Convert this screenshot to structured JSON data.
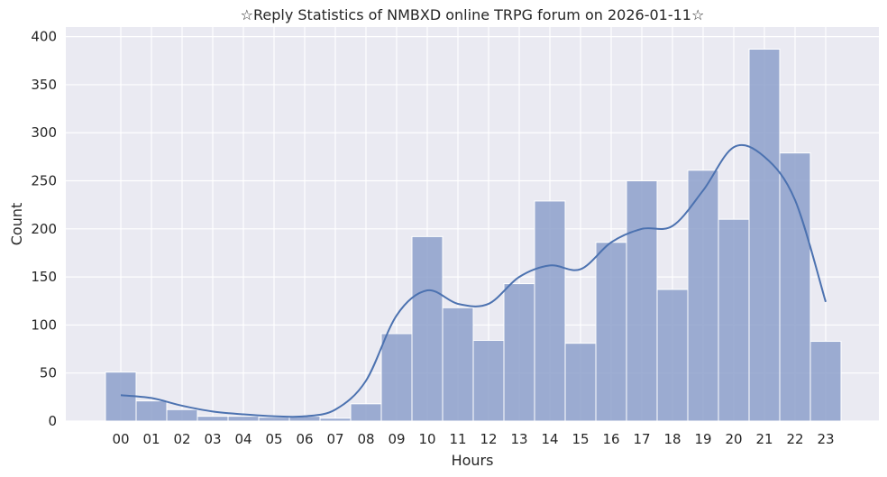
{
  "chart_data": {
    "type": "bar",
    "title": "☆Reply Statistics of NMBXD online TRPG forum on 2026-01-11☆",
    "xlabel": "Hours",
    "ylabel": "Count",
    "categories": [
      "00",
      "01",
      "02",
      "03",
      "04",
      "05",
      "06",
      "07",
      "08",
      "09",
      "10",
      "11",
      "12",
      "13",
      "14",
      "15",
      "16",
      "17",
      "18",
      "19",
      "20",
      "21",
      "22",
      "23"
    ],
    "values": [
      51,
      21,
      12,
      5,
      5,
      4,
      5,
      3,
      18,
      91,
      192,
      118,
      84,
      143,
      229,
      81,
      186,
      250,
      137,
      261,
      210,
      387,
      279,
      83
    ],
    "kde": [
      27,
      24,
      16,
      10,
      7,
      5,
      5,
      12,
      42,
      110,
      136,
      122,
      122,
      150,
      162,
      158,
      186,
      200,
      203,
      240,
      285,
      275,
      230,
      124
    ],
    "ylim": [
      0,
      410
    ],
    "yticks": [
      0,
      50,
      100,
      150,
      200,
      250,
      300,
      350,
      400
    ],
    "grid": true,
    "colors": {
      "bar": "#8da0cb",
      "bar_edge": "#ffffff",
      "kde": "#4c72b0",
      "background": "#eaeaf2",
      "grid": "#ffffff"
    }
  }
}
